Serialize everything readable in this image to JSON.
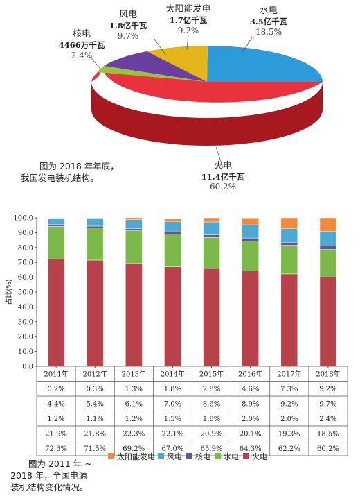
{
  "colors": {
    "solar": "#F08A3C",
    "wind": "#4FA8CF",
    "nuclear": "#6A4FA0",
    "hydro": "#7DB84A",
    "thermal": "#B8424C",
    "pie_thermal_top": "#E8323E",
    "pie_thermal_side": "#A8191F",
    "pie_hydro": "#2D9AD9",
    "pie_solar": "#E5B61A",
    "pie_wind": "#6A3FA0",
    "pie_nuclear": "#98C43C"
  },
  "pie": {
    "labels": {
      "wind": {
        "name": "风电",
        "value": "1.8亿千瓦",
        "pct": "9.7%"
      },
      "solar": {
        "name": "太阳能发电",
        "value": "1.7亿千瓦",
        "pct": "9.2%"
      },
      "hydro": {
        "name": "水电",
        "value": "3.5亿千瓦",
        "pct": "18.5%"
      },
      "nuclear": {
        "name": "核电",
        "value": "4466万千瓦",
        "pct": "2.4%"
      },
      "thermal": {
        "name": "火电",
        "value": "11.4亿千瓦",
        "pct": "60.2%"
      }
    },
    "caption_line1": "图为 2018 年年底，",
    "caption_line2": "我国发电装机结构。"
  },
  "chart_data": [
    {
      "type": "pie",
      "categories": [
        "火电",
        "水电",
        "太阳能发电",
        "风电",
        "核电"
      ],
      "values": [
        60.2,
        18.5,
        9.2,
        9.7,
        2.4
      ],
      "title": ""
    },
    {
      "type": "bar",
      "stacked": true,
      "categories": [
        "2011年",
        "2012年",
        "2013年",
        "2014年",
        "2015年",
        "2016年",
        "2017年",
        "2018年"
      ],
      "ylabel": "占比(%)",
      "ylim": [
        0,
        100
      ],
      "yticks": [
        "0.0",
        "10.0",
        "20.0",
        "30.0",
        "40.0",
        "50.0",
        "60.0",
        "70.0",
        "80.0",
        "90.0",
        "100.0"
      ],
      "series": [
        {
          "name": "火电",
          "values": [
            72.3,
            71.5,
            69.2,
            67.0,
            65.9,
            64.3,
            62.2,
            60.2
          ]
        },
        {
          "name": "水电",
          "values": [
            21.9,
            21.8,
            22.3,
            22.1,
            20.9,
            20.1,
            19.3,
            18.5
          ]
        },
        {
          "name": "核电",
          "values": [
            1.2,
            1.1,
            1.2,
            1.5,
            1.8,
            2.0,
            2.0,
            2.4
          ]
        },
        {
          "name": "风电",
          "values": [
            4.4,
            5.4,
            6.1,
            7.0,
            8.6,
            8.9,
            9.2,
            9.7
          ]
        },
        {
          "name": "太阳能发电",
          "values": [
            0.2,
            0.3,
            1.3,
            1.8,
            2.8,
            4.6,
            7.3,
            9.2
          ]
        }
      ],
      "table_rows": [
        [
          "0.2%",
          "0.3%",
          "1.3%",
          "1.8%",
          "2.8%",
          "4.6%",
          "7.3%",
          "9.2%"
        ],
        [
          "4.4%",
          "5.4%",
          "6.1%",
          "7.0%",
          "8.6%",
          "8.9%",
          "9.2%",
          "9.7%"
        ],
        [
          "1.2%",
          "1.1%",
          "1.2%",
          "1.5%",
          "1.8%",
          "2.0%",
          "2.0%",
          "2.4%"
        ],
        [
          "21.9%",
          "21.8%",
          "22.3%",
          "22.1%",
          "20.9%",
          "20.1%",
          "19.3%",
          "18.5%"
        ],
        [
          "72.3%",
          "71.5%",
          "69.2%",
          "67.0%",
          "65.9%",
          "64.3%",
          "62.2%",
          "60.2%"
        ]
      ],
      "legend": [
        "太阳能发电",
        "风电",
        "核电",
        "水电",
        "火电"
      ],
      "legend_placement": "bottom",
      "grid": false
    }
  ],
  "bottom_caption": {
    "line1": "图为 2011 年 ~",
    "line2": "2018 年，全国电源",
    "line3": "装机结构变化情况。"
  }
}
